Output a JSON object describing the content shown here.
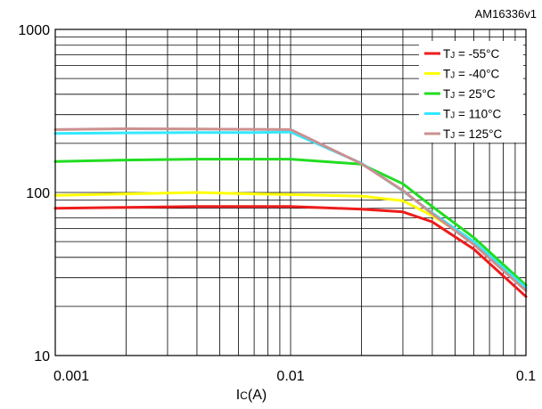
{
  "figure_id": "AM16336v1",
  "chart_data": {
    "type": "line",
    "title": "",
    "xlabel_main": "I",
    "xlabel_sub": "C",
    "xlabel_unit": "(A)",
    "ylabel": "",
    "x_scale": "log",
    "y_scale": "log",
    "xlim": [
      0.001,
      0.1
    ],
    "ylim": [
      10,
      1000
    ],
    "grid": true,
    "legend_position": "top-right",
    "x_ticks": [
      {
        "value": 0.001,
        "label": "0.001"
      },
      {
        "value": 0.01,
        "label": "0.01"
      },
      {
        "value": 0.1,
        "label": "0.1"
      }
    ],
    "y_ticks": [
      {
        "value": 10,
        "label": "10"
      },
      {
        "value": 100,
        "label": "100"
      },
      {
        "value": 1000,
        "label": "1000"
      }
    ],
    "series": [
      {
        "name": "-55°C",
        "color": "#ee1c1c",
        "x": [
          0.001,
          0.002,
          0.004,
          0.007,
          0.01,
          0.02,
          0.03,
          0.04,
          0.06,
          0.1
        ],
        "y": [
          80,
          81,
          82,
          82,
          82,
          79,
          76,
          66,
          45,
          23
        ]
      },
      {
        "name": "-40°C",
        "color": "#ffff00",
        "x": [
          0.001,
          0.002,
          0.004,
          0.007,
          0.01,
          0.02,
          0.03,
          0.04,
          0.06,
          0.1
        ],
        "y": [
          96,
          98,
          100,
          98,
          97,
          95,
          89,
          72,
          50,
          25
        ]
      },
      {
        "name": "25°C",
        "color": "#22dd22",
        "x": [
          0.001,
          0.002,
          0.004,
          0.007,
          0.01,
          0.02,
          0.03,
          0.04,
          0.06,
          0.1
        ],
        "y": [
          155,
          158,
          160,
          160,
          160,
          149,
          113,
          82,
          53,
          27
        ]
      },
      {
        "name": "110°C",
        "color": "#33e8ff",
        "x": [
          0.001,
          0.002,
          0.004,
          0.007,
          0.01,
          0.02,
          0.03,
          0.04,
          0.06,
          0.1
        ],
        "y": [
          230,
          232,
          233,
          233,
          235,
          151,
          102,
          75,
          50,
          26
        ]
      },
      {
        "name": "125°C",
        "color": "#cc9090",
        "x": [
          0.001,
          0.002,
          0.004,
          0.007,
          0.01,
          0.02,
          0.03,
          0.04,
          0.06,
          0.1
        ],
        "y": [
          243,
          246,
          245,
          244,
          243,
          150,
          103,
          74,
          48,
          25
        ]
      }
    ]
  }
}
